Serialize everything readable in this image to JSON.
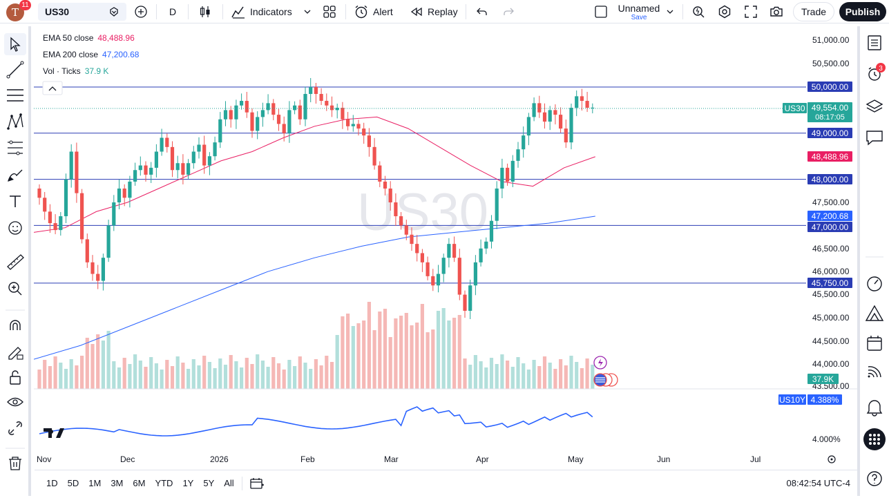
{
  "topbar": {
    "avatar_letter": "T",
    "notifications_count": "11",
    "symbol": "US30",
    "interval": "D",
    "indicators_label": "Indicators",
    "alert_label": "Alert",
    "replay_label": "Replay",
    "layout_name": "Unnamed",
    "layout_save": "Save",
    "trade_label": "Trade",
    "publish_label": "Publish"
  },
  "legend": {
    "ema50_label": "EMA 50 close",
    "ema50_value": "48,488.96",
    "ema200_label": "EMA 200 close",
    "ema200_value": "47,200.68",
    "vol_label": "Vol · Ticks",
    "vol_value": "37.9 K"
  },
  "watermark": "US30",
  "price_axis": {
    "ticks": [
      "51,000.00",
      "50,500.00",
      "47,500.00",
      "46,500.00",
      "46,000.00",
      "45,500.00",
      "45,000.00",
      "44,500.00",
      "44,000.00",
      "43,500.00"
    ],
    "labels": {
      "level_50000": "50,000.00",
      "symbol_tag": "US30",
      "last_price": "49,554.00",
      "countdown": "08:17:05",
      "level_49000": "49,000.00",
      "ema50": "48,488.96",
      "level_48000": "48,000.00",
      "ema200": "47,200.68",
      "level_47000": "47,000.00",
      "level_45750": "45,750.00",
      "volume": "37.9K"
    },
    "compare_symbol": "US10Y",
    "compare_value": "4.388%",
    "compare_tick": "4.000%"
  },
  "time_axis": [
    "Nov",
    "Dec",
    "2026",
    "Feb",
    "Mar",
    "Apr",
    "May",
    "Jun",
    "Jul"
  ],
  "bottombar": {
    "ranges": [
      "1D",
      "5D",
      "1M",
      "3M",
      "6M",
      "YTD",
      "1Y",
      "5Y",
      "All"
    ],
    "clock": "08:42:54 UTC-4"
  },
  "right_alerts_count": "3",
  "colors": {
    "up": "#26a69a",
    "down": "#ef5350",
    "ema50": "#e91e63",
    "ema200": "#2962ff",
    "hline": "#2a3cb4",
    "us10y": "#2962ff",
    "vol_up": "#b2dfdb",
    "vol_down": "#f5b8b6"
  },
  "chart_data": {
    "type": "candlestick",
    "symbol": "US30",
    "interval": "D",
    "ylim": [
      43500,
      51250
    ],
    "horizontal_levels": [
      50000,
      49000,
      48000,
      47000,
      45750
    ],
    "last_price": 49554,
    "ema50_last": 48488.96,
    "ema200_last": 47200.68,
    "x_labels": [
      "Nov",
      "Dec",
      "2026",
      "Feb",
      "Mar",
      "Apr",
      "May",
      "Jun",
      "Jul"
    ],
    "closes": [
      47600,
      47300,
      47050,
      46900,
      47200,
      48000,
      48600,
      47700,
      46700,
      46200,
      45950,
      45800,
      46300,
      47000,
      47500,
      47800,
      47600,
      47950,
      48200,
      48300,
      48100,
      48250,
      48600,
      48900,
      48700,
      48200,
      48350,
      48100,
      48350,
      48600,
      48750,
      48300,
      48500,
      48800,
      49300,
      49500,
      49300,
      49600,
      49700,
      49450,
      49050,
      49350,
      49500,
      49650,
      49400,
      49200,
      49000,
      49500,
      49600,
      49300,
      49850,
      50000,
      49850,
      49700,
      49600,
      49500,
      49550,
      49300,
      49150,
      49200,
      49100,
      48950,
      48700,
      48300,
      47950,
      47800,
      47500,
      47200,
      47000,
      46800,
      46600,
      46400,
      46200,
      45900,
      45700,
      45950,
      46300,
      46600,
      46300,
      45500,
      45150,
      45700,
      46200,
      46500,
      46650,
      47100,
      47800,
      48250,
      47950,
      48400,
      48650,
      48950,
      49350,
      49650,
      49450,
      49250,
      49500,
      49400,
      49100,
      48800,
      49550,
      49800,
      49700,
      49550,
      49554
    ],
    "ema50": [
      46850,
      46950,
      47300,
      47500,
      47800,
      48100,
      48400,
      48600,
      48900,
      49150,
      49300,
      49350,
      49100,
      48700,
      48300,
      47950,
      47850,
      48250,
      48489
    ],
    "ema200": [
      44100,
      44400,
      44800,
      45200,
      45600,
      46000,
      46300,
      46550,
      46750,
      46850,
      46950,
      47050,
      47200
    ],
    "us10y_last": 4.388
  }
}
